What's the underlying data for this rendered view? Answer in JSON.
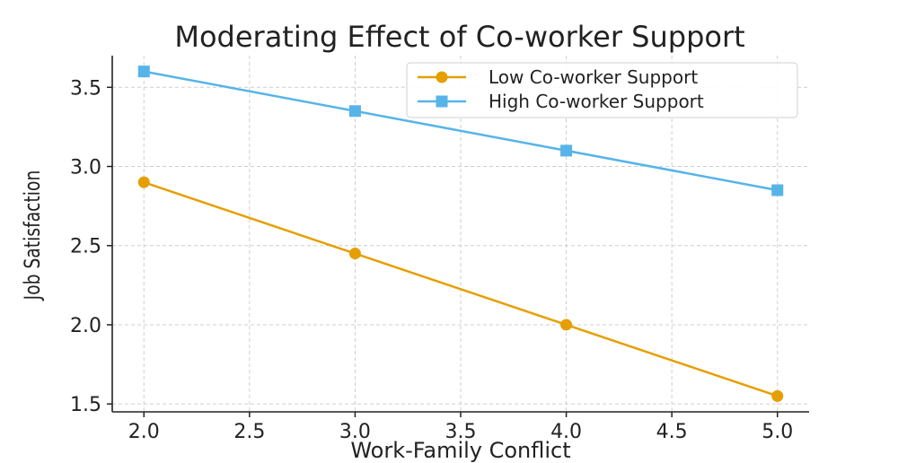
{
  "chart_data": {
    "type": "line",
    "title": "Moderating Effect of Co-worker Support",
    "xlabel": "Work-Family Conflict",
    "ylabel": "Job Satisfaction",
    "x": [
      2.0,
      3.0,
      4.0,
      5.0
    ],
    "xlim": [
      1.85,
      5.15
    ],
    "ylim": [
      1.45,
      3.7
    ],
    "xticks": [
      "2.0",
      "2.5",
      "3.0",
      "3.5",
      "4.0",
      "4.5",
      "5.0"
    ],
    "yticks": [
      "1.5",
      "2.0",
      "2.5",
      "3.0",
      "3.5"
    ],
    "grid": true,
    "legend_position": "top-right",
    "series": [
      {
        "name": "Low Co-worker Support",
        "values": [
          2.9,
          2.45,
          2.0,
          1.55
        ],
        "color": "#E69F00",
        "marker": "circle"
      },
      {
        "name": "High Co-worker Support",
        "values": [
          3.6,
          3.35,
          3.1,
          2.85
        ],
        "color": "#56B4E9",
        "marker": "square"
      }
    ]
  }
}
